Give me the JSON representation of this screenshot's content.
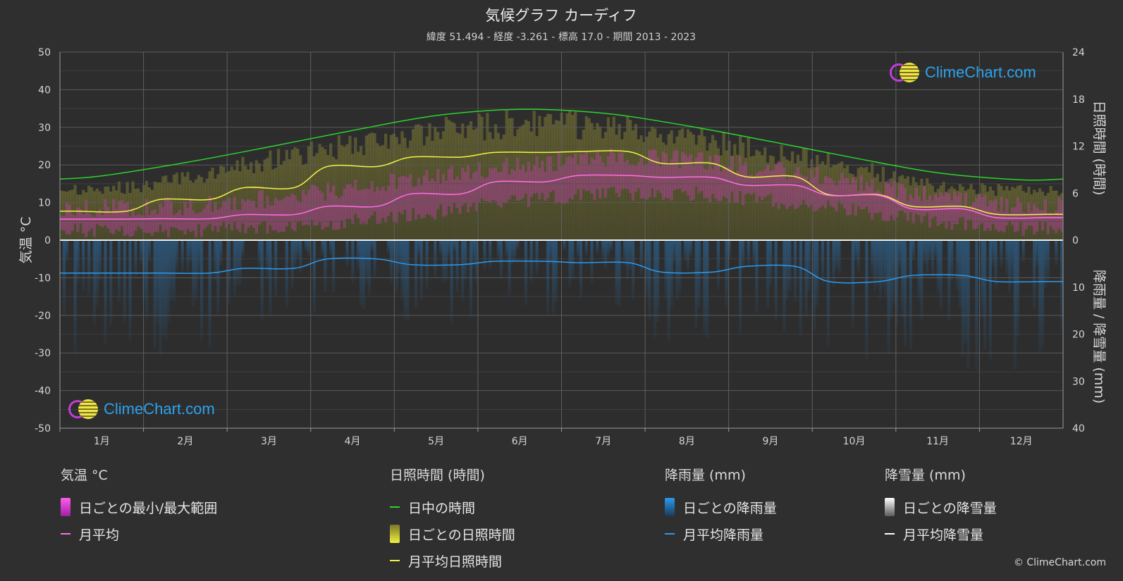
{
  "header": {
    "title": "気候グラフ カーディフ",
    "subtitle": "緯度 51.494 - 経度 -3.261 - 標高 17.0 - 期間 2013 - 2023"
  },
  "logo": {
    "text": "ClimeChart.com"
  },
  "copyright": "© ClimeChart.com",
  "colors": {
    "background": "#2f2f2f",
    "daylight": "#2bd42b",
    "sunshine_avg": "#f2f24a",
    "temp_avg": "#ff6ee6",
    "rain_avg": "#2a9bf0",
    "snow_avg": "#ffffff",
    "temp_band": "#d83cc4",
    "sunshine_band": "#9b9b2c",
    "rain_band": "#1e6aa0"
  },
  "chart_data": {
    "type": "line",
    "months": [
      "1月",
      "2月",
      "3月",
      "4月",
      "5月",
      "6月",
      "7月",
      "8月",
      "9月",
      "10月",
      "11月",
      "12月"
    ],
    "y_left": {
      "label": "気温 °C",
      "range": [
        -50,
        50
      ],
      "ticks": [
        "50",
        "40",
        "30",
        "20",
        "10",
        "0",
        "-10",
        "-20",
        "-30",
        "-40",
        "-50"
      ]
    },
    "y_right_top": {
      "label": "日照時間 (時間)",
      "range": [
        0,
        24
      ],
      "ticks": [
        "24",
        "18",
        "12",
        "6",
        "0"
      ]
    },
    "y_right_bottom": {
      "label": "降雨量 / 降雪量 (mm)",
      "range": [
        0,
        40
      ],
      "ticks": [
        "10",
        "20",
        "30",
        "40"
      ]
    },
    "grid": true,
    "series": [
      {
        "name": "日中の時間",
        "unit": "hours",
        "values": [
          8.2,
          9.9,
          11.9,
          14.0,
          15.9,
          16.7,
          16.2,
          14.6,
          12.6,
          10.5,
          8.6,
          7.7
        ]
      },
      {
        "name": "月平均日照時間",
        "unit": "hours",
        "values": [
          3.7,
          5.2,
          6.7,
          9.4,
          10.6,
          11.2,
          11.3,
          9.8,
          8.1,
          5.8,
          4.3,
          3.3
        ]
      },
      {
        "name": "月平均",
        "unit": "°C",
        "values": [
          5.6,
          5.7,
          6.8,
          9.0,
          12.3,
          15.5,
          17.2,
          16.7,
          14.6,
          11.9,
          8.3,
          6.0
        ]
      },
      {
        "name": "月平均降雨量",
        "unit": "mm",
        "values": [
          7.0,
          7.0,
          6.0,
          4.0,
          5.2,
          4.5,
          4.8,
          6.8,
          5.6,
          8.8,
          7.5,
          8.8
        ]
      },
      {
        "name": "月平均降雪量",
        "unit": "mm",
        "values": [
          0,
          0,
          0,
          0,
          0,
          0,
          0,
          0,
          0,
          0,
          0,
          0
        ]
      }
    ],
    "daily_temp_range_avg": {
      "min": [
        2.5,
        2.5,
        3.5,
        5.0,
        7.5,
        10.5,
        12.5,
        12.5,
        10.5,
        8.0,
        5.0,
        3.0
      ],
      "max": [
        8.5,
        9.0,
        11.0,
        14.0,
        17.0,
        20.0,
        22.0,
        21.5,
        19.0,
        15.5,
        11.5,
        9.0
      ]
    },
    "daily_sunshine_envelope": [
      6.5,
      8.0,
      10.5,
      12.5,
      14.5,
      15.2,
      15.0,
      13.5,
      11.5,
      9.5,
      7.0,
      6.5
    ]
  },
  "legend": {
    "temperature": {
      "title": "気温 °C",
      "items": [
        {
          "label": "日ごとの最小/最大範囲",
          "kind": "bar",
          "color": "#e040d8"
        },
        {
          "label": "月平均",
          "kind": "line",
          "color": "#ff6ee6"
        }
      ]
    },
    "sunshine": {
      "title": "日照時間 (時間)",
      "items": [
        {
          "label": "日中の時間",
          "kind": "line",
          "color": "#2bd42b"
        },
        {
          "label": "日ごとの日照時間",
          "kind": "bar",
          "color": "#e6e63a"
        },
        {
          "label": "月平均日照時間",
          "kind": "line",
          "color": "#f2f24a"
        }
      ]
    },
    "rain": {
      "title": "降雨量 (mm)",
      "items": [
        {
          "label": "日ごとの降雨量",
          "kind": "bar",
          "color": "#2a8be6"
        },
        {
          "label": "月平均降雨量",
          "kind": "line",
          "color": "#2a9bf0"
        }
      ]
    },
    "snow": {
      "title": "降雪量 (mm)",
      "items": [
        {
          "label": "日ごとの降雪量",
          "kind": "bar",
          "color": "#f0f0f0"
        },
        {
          "label": "月平均降雪量",
          "kind": "line",
          "color": "#ffffff"
        }
      ]
    }
  }
}
